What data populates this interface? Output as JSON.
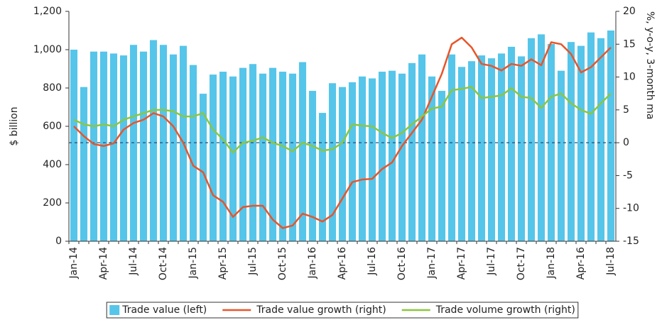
{
  "chart_data": {
    "type": "bar_line",
    "ylabel": "$ billion",
    "y2label": "%, y-o-y, 3-month ma",
    "categories": [
      "Jan-14",
      null,
      null,
      "Apr-14",
      null,
      null,
      "Jul-14",
      null,
      null,
      "Oct-14",
      null,
      null,
      "Jan-15",
      null,
      null,
      "Apr-15",
      null,
      null,
      "Jul-15",
      null,
      null,
      "Oct-15",
      null,
      null,
      "Jan-16",
      null,
      null,
      "Apr-16",
      null,
      null,
      "Jul-16",
      null,
      null,
      "Oct-16",
      null,
      null,
      "Jan-17",
      null,
      null,
      "Apr-17",
      null,
      null,
      "Jul-17",
      null,
      null,
      "Oct-17",
      null,
      null,
      "Jan-18",
      null,
      null,
      "Apr-16",
      null,
      null,
      "Jul-18"
    ],
    "series": [
      {
        "name": "Trade value (left)",
        "type": "bar",
        "color": "#56c5ea",
        "values": [
          1000,
          805,
          990,
          990,
          980,
          970,
          1025,
          990,
          1050,
          1025,
          975,
          1020,
          920,
          770,
          870,
          885,
          860,
          905,
          925,
          875,
          905,
          885,
          875,
          935,
          785,
          670,
          825,
          805,
          830,
          860,
          850,
          885,
          890,
          875,
          930,
          975,
          860,
          785,
          975,
          910,
          940,
          970,
          955,
          980,
          1015,
          965,
          1060,
          1080,
          1030,
          890,
          1040,
          1020,
          1090,
          1060,
          1100
        ]
      },
      {
        "name": "Trade value growth (right)",
        "type": "line",
        "axis": "y2",
        "color": "#e8552a",
        "values": [
          2.5,
          1,
          -0.2,
          -0.5,
          -0.1,
          2,
          3,
          3.5,
          4.5,
          4,
          2.5,
          0,
          -3.5,
          -4.5,
          -8,
          -9,
          -11.3,
          -9.8,
          -9.6,
          -9.6,
          -11.7,
          -13,
          -12.6,
          -10.8,
          -11.3,
          -12,
          -11,
          -8.5,
          -6,
          -5.6,
          -5.5,
          -4,
          -3,
          -0.5,
          1.5,
          3.5,
          7,
          10.5,
          15,
          16,
          14.5,
          12,
          11.7,
          11,
          12,
          11.7,
          12.7,
          11.8,
          15.3,
          15,
          13.5,
          10.7,
          11.5,
          13,
          14.5
        ]
      },
      {
        "name": "Trade volume growth (right)",
        "type": "line",
        "axis": "y2",
        "color": "#8cc63f",
        "values": [
          3.5,
          2.8,
          2.5,
          2.8,
          2.5,
          3.5,
          4,
          4.5,
          5,
          5,
          4.8,
          4,
          4,
          4.5,
          2,
          0.5,
          -1.5,
          0,
          0.3,
          0.8,
          0,
          -0.5,
          -1.3,
          0,
          -0.5,
          -1.2,
          -1,
          0,
          2.8,
          2.6,
          2.5,
          1.5,
          0.7,
          1.5,
          2.8,
          4,
          5.2,
          5.5,
          8,
          8.2,
          8.5,
          6.8,
          7,
          7.2,
          8.3,
          7,
          6.8,
          5.3,
          7,
          7.5,
          6,
          5,
          4.4,
          6,
          7.5
        ]
      }
    ],
    "ylim": [
      0,
      1200
    ],
    "yticks": [
      0,
      200,
      400,
      600,
      800,
      {
        "value": 1000,
        "label": "1,000"
      },
      {
        "value": 1200,
        "label": "1,200"
      }
    ],
    "y2lim": [
      -15,
      20
    ],
    "y2ticks": [
      -15,
      -10,
      -5,
      0,
      5,
      10,
      15,
      20
    ],
    "zero_line": true,
    "legend": "bottom"
  }
}
